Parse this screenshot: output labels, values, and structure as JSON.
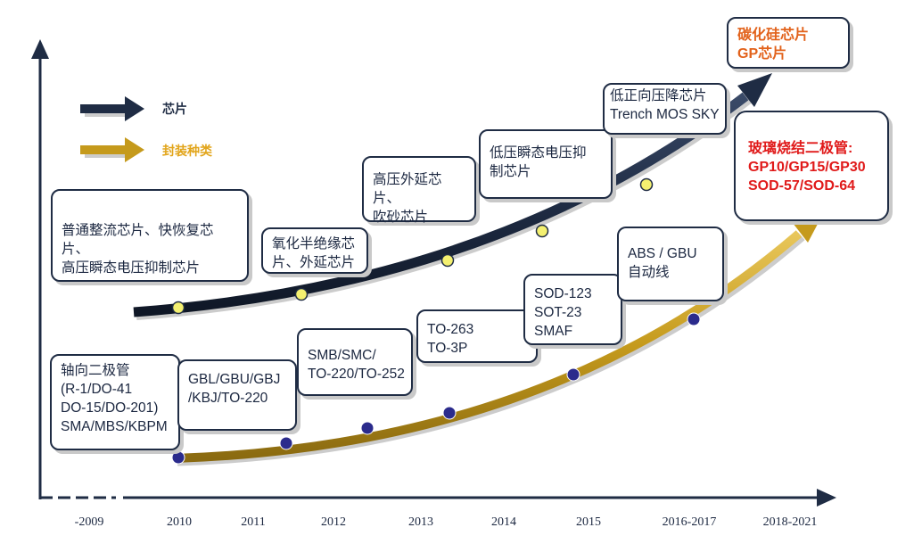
{
  "legend": {
    "chip": "芯片",
    "package": "封装种类"
  },
  "years": [
    "-2009",
    "2010",
    "2011",
    "2012",
    "2013",
    "2014",
    "2015",
    "2016-2017",
    "2018-2021"
  ],
  "chip_boxes": [
    {
      "id": "chip-1",
      "text": "普通整流芯片、快恢复芯片、\n高压瞬态电压抑制芯片"
    },
    {
      "id": "chip-2",
      "text": "氧化半绝缘芯\n片、外延芯片"
    },
    {
      "id": "chip-3",
      "text": "高压外延芯片、\n吹砂芯片"
    },
    {
      "id": "chip-4",
      "text": "低压瞬态电压抑\n制芯片"
    },
    {
      "id": "chip-5",
      "text": "低正向压降芯片\nTrench MOS SKY"
    },
    {
      "id": "chip-6",
      "text": "碳化硅芯片\nGP芯片"
    }
  ],
  "package_boxes": [
    {
      "id": "pkg-1",
      "text": "轴向二极管\n(R-1/DO-41\nDO-15/DO-201)\nSMA/MBS/KBPM"
    },
    {
      "id": "pkg-2",
      "text": "GBL/GBU/GBJ\n/KBJ/TO-220"
    },
    {
      "id": "pkg-3",
      "text": "SMB/SMC/\nTO-220/TO-252"
    },
    {
      "id": "pkg-4",
      "text": "TO-263\nTO-3P"
    },
    {
      "id": "pkg-5",
      "text": "SOD-123\nSOT-23\nSMAF"
    },
    {
      "id": "pkg-6",
      "text": "ABS / GBU\n自动线"
    },
    {
      "id": "pkg-7",
      "text": "玻璃烧结二极管:\nGP10/GP15/GP30\nSOD-57/SOD-64"
    }
  ],
  "colors": {
    "navy": "#1f2c44",
    "gold": "#c9a227",
    "orange_text": "#e2621b",
    "red_text": "#e01a1a",
    "yellow_dot": "#f4f070",
    "blue_dot": "#2b2b8c"
  }
}
